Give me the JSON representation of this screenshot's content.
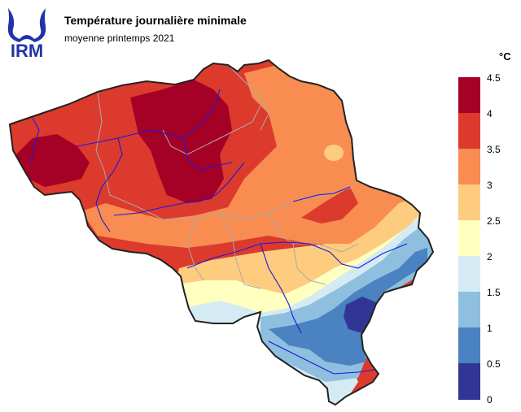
{
  "logo": {
    "text": "IRM",
    "color": "#2233aa"
  },
  "title": "Température journalière minimale",
  "subtitle": "moyenne printemps 2021",
  "unit": "°C",
  "legend": {
    "ticks": [
      "4.5",
      "4",
      "3.5",
      "3",
      "2.5",
      "2",
      "1.5",
      "1",
      "0.5",
      "0"
    ],
    "colors": [
      "#a50026",
      "#dc3a2c",
      "#f88c51",
      "#fdcc7e",
      "#ffffc0",
      "#d4ebf3",
      "#8ebfde",
      "#4a82c2",
      "#313695"
    ]
  },
  "map_colors": {
    "border": "#222222",
    "rivers": "#1a1adc",
    "provinces": "#aaaaaa"
  }
}
